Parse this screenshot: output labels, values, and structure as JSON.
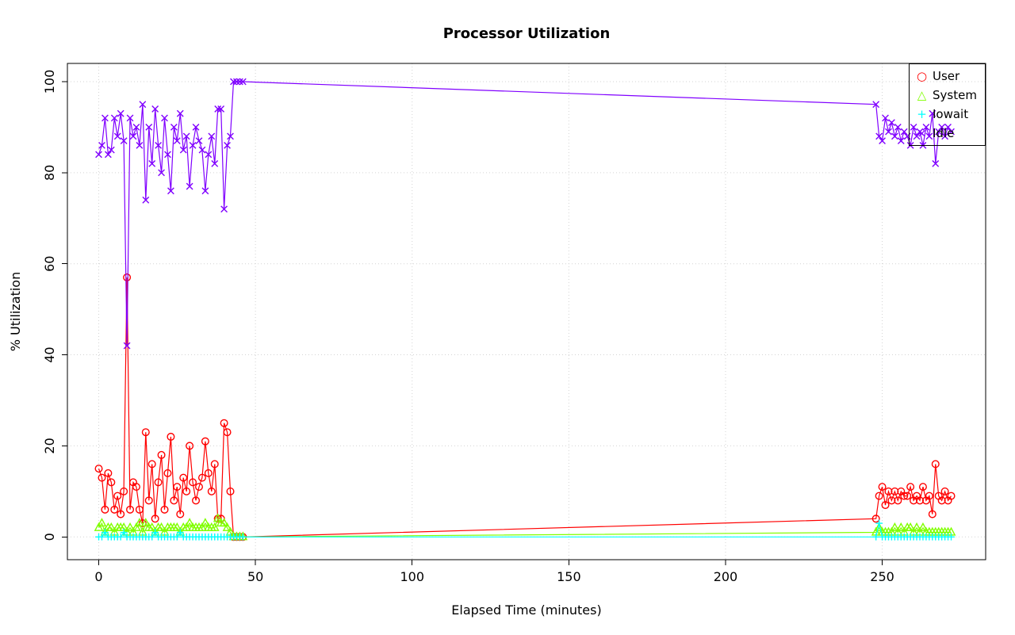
{
  "chart_data": {
    "type": "line",
    "title": "Processor Utilization",
    "xlabel": "Elapsed Time (minutes)",
    "ylabel": "% Utilization",
    "xlim": [
      -10,
      283
    ],
    "ylim": [
      -5,
      104
    ],
    "xticks": [
      0,
      50,
      100,
      150,
      200,
      250
    ],
    "yticks": [
      0,
      20,
      40,
      60,
      80,
      100
    ],
    "grid": true,
    "grid_color": "#d3d3d3",
    "legend_position": "top-right",
    "x": [
      0,
      1,
      2,
      3,
      4,
      5,
      6,
      7,
      8,
      9,
      10,
      11,
      12,
      13,
      14,
      15,
      16,
      17,
      18,
      19,
      20,
      21,
      22,
      23,
      24,
      25,
      26,
      27,
      28,
      29,
      30,
      31,
      32,
      33,
      34,
      35,
      36,
      37,
      38,
      39,
      40,
      41,
      42,
      43,
      44,
      45,
      46,
      248,
      249,
      250,
      251,
      252,
      253,
      254,
      255,
      256,
      257,
      258,
      259,
      260,
      261,
      262,
      263,
      264,
      265,
      266,
      267,
      268,
      269,
      270,
      271,
      272
    ],
    "series": [
      {
        "name": "User",
        "color": "#FF0000",
        "marker": "circle",
        "values": [
          15,
          13,
          6,
          14,
          12,
          6,
          9,
          5,
          10,
          57,
          6,
          12,
          11,
          6,
          3,
          23,
          8,
          16,
          4,
          12,
          18,
          6,
          14,
          22,
          8,
          11,
          5,
          13,
          10,
          20,
          12,
          8,
          11,
          13,
          21,
          14,
          10,
          16,
          4,
          4,
          25,
          23,
          10,
          0,
          0,
          0,
          0,
          4,
          9,
          11,
          7,
          10,
          8,
          10,
          8,
          10,
          9,
          9,
          11,
          8,
          9,
          8,
          11,
          8,
          9,
          5,
          16,
          9,
          8,
          10,
          8,
          9
        ]
      },
      {
        "name": "System",
        "color": "#80FF00",
        "marker": "triangle",
        "values": [
          2,
          3,
          1,
          2,
          2,
          1,
          2,
          2,
          2,
          1,
          2,
          1,
          2,
          3,
          1,
          3,
          2,
          2,
          1,
          2,
          2,
          1,
          2,
          2,
          2,
          2,
          1,
          2,
          2,
          3,
          2,
          2,
          2,
          2,
          3,
          2,
          2,
          2,
          4,
          3,
          3,
          2,
          1,
          0,
          0,
          0,
          0,
          1,
          2,
          1,
          1,
          1,
          1,
          2,
          1,
          2,
          1,
          2,
          2,
          1,
          2,
          1,
          2,
          1,
          1,
          1,
          1,
          1,
          1,
          1,
          1,
          1
        ]
      },
      {
        "name": "Iowait",
        "color": "#00FFFF",
        "marker": "plus",
        "values": [
          0,
          0,
          1,
          0,
          0,
          0,
          0,
          0,
          1,
          0,
          0,
          0,
          0,
          0,
          0,
          0,
          0,
          0,
          1,
          0,
          0,
          0,
          0,
          0,
          0,
          0,
          1,
          0,
          0,
          0,
          0,
          0,
          0,
          0,
          0,
          0,
          0,
          0,
          0,
          0,
          0,
          0,
          0,
          0,
          0,
          0,
          0,
          0,
          3,
          0,
          0,
          0,
          0,
          0,
          0,
          0,
          0,
          0,
          0,
          0,
          0,
          0,
          0,
          0,
          0,
          0,
          0,
          0,
          0,
          0,
          0,
          0
        ]
      },
      {
        "name": "Idle",
        "color": "#8000FF",
        "marker": "x",
        "values": [
          84,
          86,
          92,
          84,
          85,
          92,
          88,
          93,
          87,
          42,
          92,
          88,
          90,
          86,
          95,
          74,
          90,
          82,
          94,
          86,
          80,
          92,
          84,
          76,
          90,
          87,
          93,
          85,
          88,
          77,
          86,
          90,
          87,
          85,
          76,
          84,
          88,
          82,
          94,
          94,
          72,
          86,
          88,
          100,
          100,
          100,
          100,
          95,
          88,
          87,
          92,
          89,
          91,
          88,
          90,
          87,
          89,
          88,
          86,
          90,
          88,
          89,
          86,
          90,
          88,
          93,
          82,
          89,
          90,
          88,
          90,
          89
        ]
      }
    ]
  }
}
